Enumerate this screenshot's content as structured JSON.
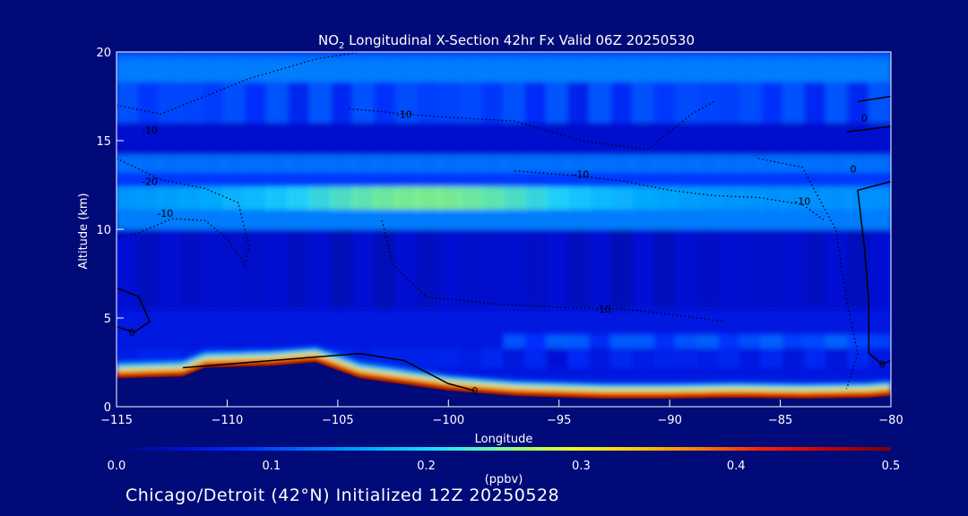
{
  "chart_data": {
    "type": "heatmap",
    "title_prefix": "NO",
    "title_subscript": "2",
    "title_rest": " Longitudinal X-Section 42hr  Fx Valid 06Z 20250530",
    "xlabel": "Longitude",
    "ylabel": "Altitude (km)",
    "xlim": [
      -115,
      -80
    ],
    "ylim": [
      0,
      20
    ],
    "xticks": [
      -115,
      -110,
      -105,
      -100,
      -95,
      -90,
      -85,
      -80
    ],
    "yticks": [
      0,
      5,
      10,
      15,
      20
    ],
    "colorbar": {
      "label": "(ppbv)",
      "min": 0.0,
      "max": 0.5,
      "ticks": [
        "0.0",
        "0.1",
        "0.2",
        "0.3",
        "0.4",
        "0.5"
      ],
      "colors": [
        "#000a78",
        "#0010d0",
        "#0030ff",
        "#0070ff",
        "#00b0ff",
        "#20e0ff",
        "#80ff90",
        "#e8ff20",
        "#ffd000",
        "#ff8000",
        "#ff2000",
        "#c80000",
        "#780000"
      ]
    },
    "layers": [
      {
        "alt": [
          19.6,
          20
        ],
        "value": 0.12,
        "pattern": "flat"
      },
      {
        "alt": [
          18.3,
          19.6
        ],
        "value": 0.14,
        "pattern": "flat"
      },
      {
        "alt": [
          16.0,
          18.3
        ],
        "value": 0.09,
        "pattern": "patchy"
      },
      {
        "alt": [
          14.2,
          16.0
        ],
        "value": 0.04,
        "pattern": "flat"
      },
      {
        "alt": [
          13.2,
          14.2
        ],
        "value": 0.13,
        "pattern": "flat"
      },
      {
        "alt": [
          12.4,
          13.2
        ],
        "value": 0.09,
        "pattern": "flat"
      },
      {
        "alt": [
          11.1,
          12.4
        ],
        "value": 0.22,
        "pattern": "peak-center"
      },
      {
        "alt": [
          10.0,
          11.1
        ],
        "value": 0.14,
        "pattern": "flat"
      },
      {
        "alt": [
          5.5,
          10.0
        ],
        "value": 0.035,
        "pattern": "patchy"
      },
      {
        "alt": [
          3.3,
          4.1
        ],
        "value": 0.11,
        "pattern": "east"
      },
      {
        "alt": [
          2.2,
          3.3
        ],
        "value": 0.06,
        "pattern": "patchy"
      }
    ],
    "boundary_layer": {
      "surface_alt": [
        [
          -115,
          1.6
        ],
        [
          -112,
          1.7
        ],
        [
          -111,
          2.2
        ],
        [
          -108,
          2.3
        ],
        [
          -106,
          2.5
        ],
        [
          -104,
          1.6
        ],
        [
          -100,
          0.9
        ],
        [
          -97,
          0.6
        ],
        [
          -93,
          0.45
        ],
        [
          -90,
          0.45
        ],
        [
          -87,
          0.5
        ],
        [
          -84,
          0.45
        ],
        [
          -81,
          0.5
        ],
        [
          -80,
          0.6
        ]
      ],
      "values": [
        0.12,
        0.22,
        0.32,
        0.42,
        0.5
      ]
    },
    "contour_labels": [
      {
        "text": "-10",
        "lon": -113.5,
        "alt": 15.6
      },
      {
        "text": "-20",
        "lon": -113.5,
        "alt": 12.7
      },
      {
        "text": "-10",
        "lon": -112.8,
        "alt": 10.9
      },
      {
        "text": "-10",
        "lon": -102.0,
        "alt": 16.5
      },
      {
        "text": "-10",
        "lon": -94.0,
        "alt": 13.1
      },
      {
        "text": "-10",
        "lon": -84.0,
        "alt": 11.6
      },
      {
        "text": "-10",
        "lon": -93.0,
        "alt": 5.5
      },
      {
        "text": "0",
        "lon": -114.3,
        "alt": 4.2
      },
      {
        "text": "0",
        "lon": -98.8,
        "alt": 0.9
      },
      {
        "text": "0",
        "lon": -81.2,
        "alt": 16.3
      },
      {
        "text": "0",
        "lon": -81.7,
        "alt": 13.4
      },
      {
        "text": "0",
        "lon": -80.4,
        "alt": 2.4
      }
    ]
  },
  "footer": {
    "text": "Chicago/Detroit (42°N) Initialized 12Z 20250528"
  }
}
